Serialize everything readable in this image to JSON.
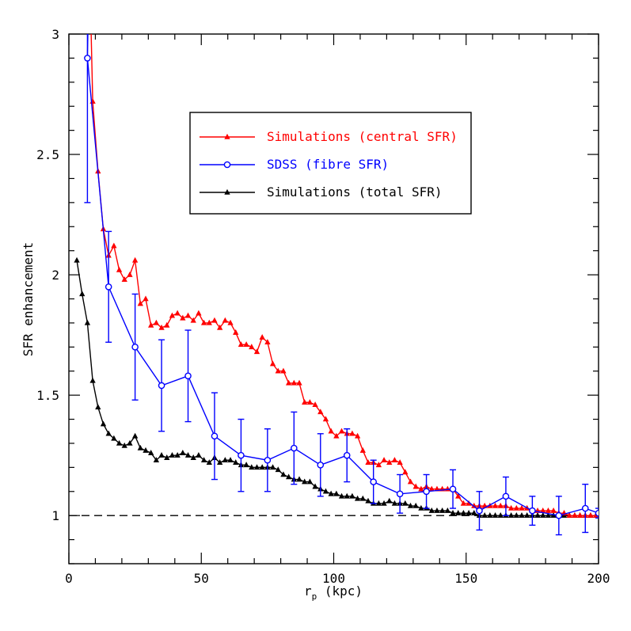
{
  "chart_data": {
    "type": "line",
    "xlabel_main": "r",
    "xlabel_sub": "p",
    "xlabel_unit": " (kpc)",
    "ylabel": "SFR enhancement",
    "xlim": [
      0,
      200
    ],
    "ylim": [
      0.8,
      3.0
    ],
    "x_ticks": [
      0,
      50,
      100,
      150,
      200
    ],
    "y_ticks": [
      1,
      1.5,
      2,
      2.5,
      3
    ],
    "x_tick_labels": [
      "0",
      "50",
      "100",
      "150",
      "200"
    ],
    "y_tick_labels": [
      "1",
      "1.5",
      "2",
      "2.5",
      "3"
    ],
    "reference_line": {
      "y": 1,
      "style": "dashed"
    },
    "legend_position": "upper-center-right",
    "series": [
      {
        "name": "Simulations (central SFR)",
        "color": "#ff0000",
        "marker": "triangle",
        "x": [
          9,
          11,
          13,
          15,
          17,
          19,
          21,
          23,
          25,
          27,
          29,
          31,
          33,
          35,
          37,
          39,
          41,
          43,
          45,
          47,
          49,
          51,
          53,
          55,
          57,
          59,
          61,
          63,
          65,
          67,
          69,
          71,
          73,
          75,
          77,
          79,
          81,
          83,
          85,
          87,
          89,
          91,
          93,
          95,
          97,
          99,
          101,
          103,
          105,
          107,
          109,
          111,
          113,
          115,
          117,
          119,
          121,
          123,
          125,
          127,
          129,
          131,
          133,
          135,
          137,
          139,
          141,
          143,
          145,
          147,
          149,
          151,
          153,
          155,
          157,
          159,
          161,
          163,
          165,
          167,
          169,
          171,
          173,
          175,
          177,
          179,
          181,
          183,
          185,
          187,
          189,
          191,
          193,
          195,
          197,
          199
        ],
        "y": [
          2.72,
          2.43,
          2.19,
          2.08,
          2.12,
          2.02,
          1.98,
          2.0,
          2.06,
          1.88,
          1.9,
          1.79,
          1.8,
          1.78,
          1.79,
          1.83,
          1.84,
          1.82,
          1.83,
          1.81,
          1.84,
          1.8,
          1.8,
          1.81,
          1.78,
          1.81,
          1.8,
          1.76,
          1.71,
          1.71,
          1.7,
          1.68,
          1.74,
          1.72,
          1.63,
          1.6,
          1.6,
          1.55,
          1.55,
          1.55,
          1.47,
          1.47,
          1.46,
          1.43,
          1.4,
          1.35,
          1.33,
          1.35,
          1.34,
          1.34,
          1.33,
          1.27,
          1.22,
          1.22,
          1.21,
          1.23,
          1.22,
          1.23,
          1.22,
          1.18,
          1.14,
          1.12,
          1.11,
          1.12,
          1.11,
          1.11,
          1.11,
          1.11,
          1.11,
          1.08,
          1.05,
          1.05,
          1.04,
          1.04,
          1.04,
          1.04,
          1.04,
          1.04,
          1.04,
          1.03,
          1.03,
          1.03,
          1.03,
          1.02,
          1.02,
          1.02,
          1.02,
          1.02,
          1.01,
          1.01,
          1.0,
          1.0,
          1.0,
          1.0,
          1.0,
          1.0
        ]
      },
      {
        "name": "SDSS (fibre SFR)",
        "color": "#0000ff",
        "marker": "circle",
        "x": [
          7,
          15,
          25,
          35,
          45,
          55,
          65,
          75,
          85,
          95,
          105,
          115,
          125,
          135,
          145,
          155,
          165,
          175,
          185,
          195,
          200
        ],
        "y": [
          2.9,
          1.95,
          1.7,
          1.54,
          1.58,
          1.33,
          1.25,
          1.23,
          1.28,
          1.21,
          1.25,
          1.14,
          1.09,
          1.1,
          1.11,
          1.02,
          1.08,
          1.02,
          1.0,
          1.03,
          1.01
        ],
        "err": [
          0.6,
          0.23,
          0.22,
          0.19,
          0.19,
          0.18,
          0.15,
          0.13,
          0.15,
          0.13,
          0.11,
          0.09,
          0.08,
          0.07,
          0.08,
          0.08,
          0.08,
          0.06,
          0.08,
          0.1,
          0.02
        ]
      },
      {
        "name": "Simulations (total SFR)",
        "color": "#000000",
        "marker": "triangle",
        "x": [
          3,
          5,
          7,
          9,
          11,
          13,
          15,
          17,
          19,
          21,
          23,
          25,
          27,
          29,
          31,
          33,
          35,
          37,
          39,
          41,
          43,
          45,
          47,
          49,
          51,
          53,
          55,
          57,
          59,
          61,
          63,
          65,
          67,
          69,
          71,
          73,
          75,
          77,
          79,
          81,
          83,
          85,
          87,
          89,
          91,
          93,
          95,
          97,
          99,
          101,
          103,
          105,
          107,
          109,
          111,
          113,
          115,
          117,
          119,
          121,
          123,
          125,
          127,
          129,
          131,
          133,
          135,
          137,
          139,
          141,
          143,
          145,
          147,
          149,
          151,
          153,
          155,
          157,
          159,
          161,
          163,
          165,
          167,
          169,
          171,
          173,
          175,
          177,
          179,
          181,
          183,
          185,
          187,
          189,
          191,
          193,
          195,
          197,
          199
        ],
        "y": [
          2.06,
          1.92,
          1.8,
          1.56,
          1.45,
          1.38,
          1.34,
          1.32,
          1.3,
          1.29,
          1.3,
          1.33,
          1.28,
          1.27,
          1.26,
          1.23,
          1.25,
          1.24,
          1.25,
          1.25,
          1.26,
          1.25,
          1.24,
          1.25,
          1.23,
          1.22,
          1.24,
          1.22,
          1.23,
          1.23,
          1.22,
          1.21,
          1.21,
          1.2,
          1.2,
          1.2,
          1.2,
          1.2,
          1.19,
          1.17,
          1.16,
          1.15,
          1.15,
          1.14,
          1.14,
          1.12,
          1.11,
          1.1,
          1.09,
          1.09,
          1.08,
          1.08,
          1.08,
          1.07,
          1.07,
          1.06,
          1.05,
          1.05,
          1.05,
          1.06,
          1.05,
          1.05,
          1.05,
          1.04,
          1.04,
          1.03,
          1.03,
          1.02,
          1.02,
          1.02,
          1.02,
          1.01,
          1.01,
          1.01,
          1.01,
          1.01,
          1.0,
          1.0,
          1.0,
          1.0,
          1.0,
          1.0,
          1.0,
          1.0,
          1.0,
          1.0,
          1.0,
          1.0,
          1.0,
          1.0,
          1.0,
          1.0,
          1.0,
          1.0,
          1.0,
          1.0,
          1.0,
          1.0,
          1.0
        ]
      }
    ]
  }
}
